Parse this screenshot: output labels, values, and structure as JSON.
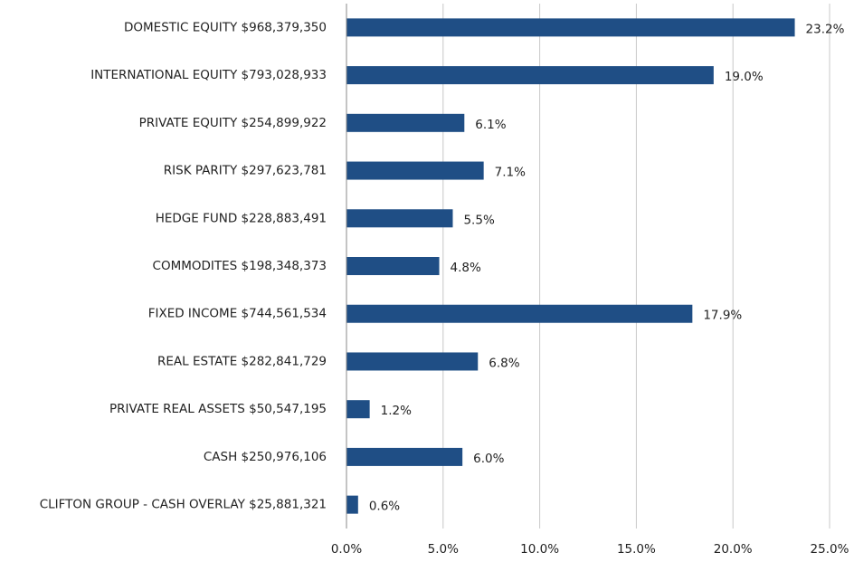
{
  "chart_data": {
    "type": "bar",
    "orientation": "horizontal",
    "categories": [
      "DOMESTIC EQUITY $968,379,350",
      "INTERNATIONAL EQUITY $793,028,933",
      "PRIVATE EQUITY $254,899,922",
      "RISK PARITY $297,623,781",
      "HEDGE FUND $228,883,491",
      "COMMODITES $198,348,373",
      "FIXED INCOME $744,561,534",
      "REAL ESTATE $282,841,729",
      "PRIVATE REAL ASSETS $50,547,195",
      "CASH $250,976,106",
      "CLIFTON GROUP - CASH OVERLAY $25,881,321"
    ],
    "values": [
      23.2,
      19.0,
      6.1,
      7.1,
      5.5,
      4.8,
      17.9,
      6.8,
      1.2,
      6.0,
      0.6
    ],
    "value_labels": [
      "23.2%",
      "19.0%",
      "6.1%",
      "7.1%",
      "5.5%",
      "4.8%",
      "17.9%",
      "6.8%",
      "1.2%",
      "6.0%",
      "0.6%"
    ],
    "color": "#1f4e85",
    "xlim": [
      0,
      25
    ],
    "xticks": [
      {
        "value": 0,
        "label": "0.0%"
      },
      {
        "value": 5,
        "label": "5.0%"
      },
      {
        "value": 10,
        "label": "10.0%"
      },
      {
        "value": 15,
        "label": "15.0%"
      },
      {
        "value": 20,
        "label": "20.0%"
      },
      {
        "value": 25,
        "label": "25.0%"
      }
    ],
    "grid": true
  }
}
